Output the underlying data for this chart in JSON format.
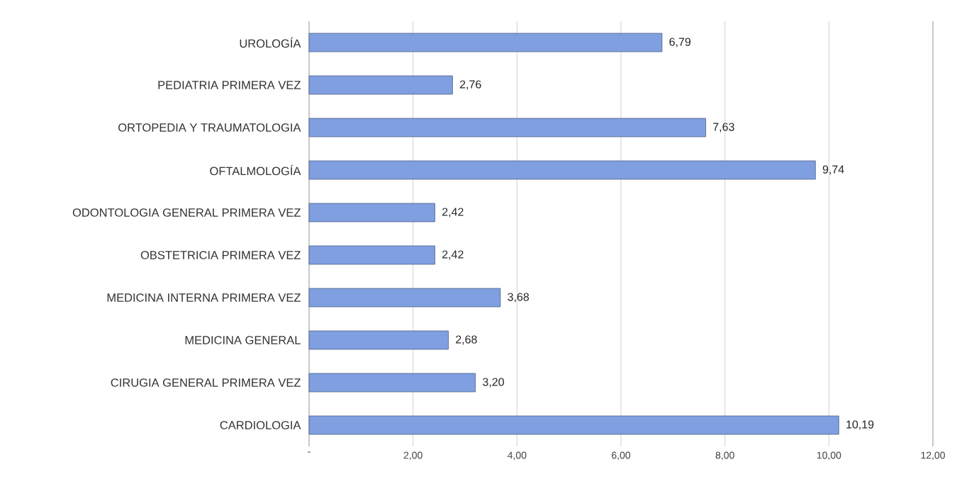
{
  "chart_data": {
    "type": "bar",
    "orientation": "horizontal",
    "categories": [
      "UROLOGÍA",
      "PEDIATRIA PRIMERA VEZ",
      "ORTOPEDIA Y TRAUMATOLOGIA",
      "OFTALMOLOGÍA",
      "ODONTOLOGIA GENERAL PRIMERA VEZ",
      "OBSTETRICIA PRIMERA VEZ",
      "MEDICINA INTERNA PRIMERA VEZ",
      "MEDICINA GENERAL",
      "CIRUGIA GENERAL PRIMERA VEZ",
      "CARDIOLOGIA"
    ],
    "values": [
      6.79,
      2.76,
      7.63,
      9.74,
      2.42,
      2.42,
      3.68,
      2.68,
      3.2,
      10.19
    ],
    "value_labels": [
      "6,79",
      "2,76",
      "7,63",
      "9,74",
      "2,42",
      "2,42",
      "3,68",
      "2,68",
      "3,20",
      "10,19"
    ],
    "color": "#7f9fe0",
    "xlim": [
      0,
      12
    ],
    "xticks": [
      {
        "value": 0,
        "label": "-"
      },
      {
        "value": 2,
        "label": "2,00"
      },
      {
        "value": 4,
        "label": "4,00"
      },
      {
        "value": 6,
        "label": "6,00"
      },
      {
        "value": 8,
        "label": "8,00"
      },
      {
        "value": 10,
        "label": "10,00"
      },
      {
        "value": 12,
        "label": "12,00"
      }
    ],
    "grid": "x"
  }
}
